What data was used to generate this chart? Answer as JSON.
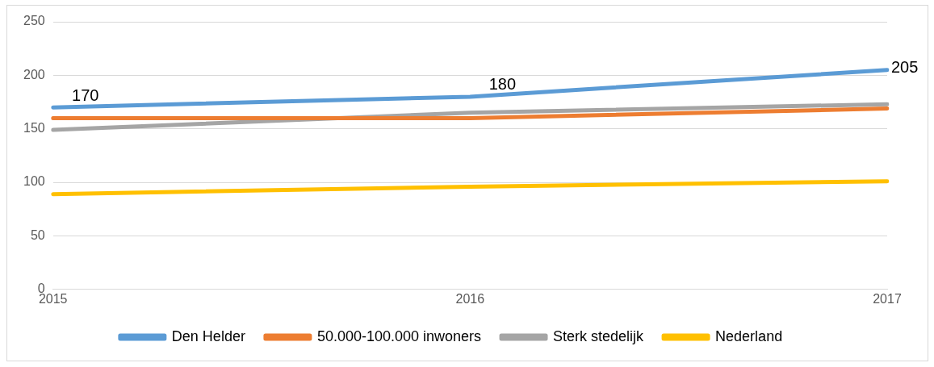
{
  "chart_data": {
    "type": "line",
    "categories": [
      "2015",
      "2016",
      "2017"
    ],
    "series": [
      {
        "name": "Den Helder",
        "color": "#5b9bd5",
        "values": [
          170,
          180,
          205
        ],
        "value_labels": [
          "170",
          "180",
          "205"
        ]
      },
      {
        "name": "50.000-100.000 inwoners",
        "color": "#ed7d31",
        "values": [
          160,
          160,
          169
        ]
      },
      {
        "name": "Sterk stedelijk",
        "color": "#a5a5a5",
        "values": [
          149,
          165,
          173
        ]
      },
      {
        "name": "Nederland",
        "color": "#ffc000",
        "values": [
          89,
          96,
          101
        ]
      }
    ],
    "ylim": [
      0,
      250
    ],
    "yticks": [
      0,
      50,
      100,
      150,
      200,
      250
    ],
    "grid": "y",
    "legend": "bottom",
    "marker": "none",
    "line_style": "solid"
  }
}
